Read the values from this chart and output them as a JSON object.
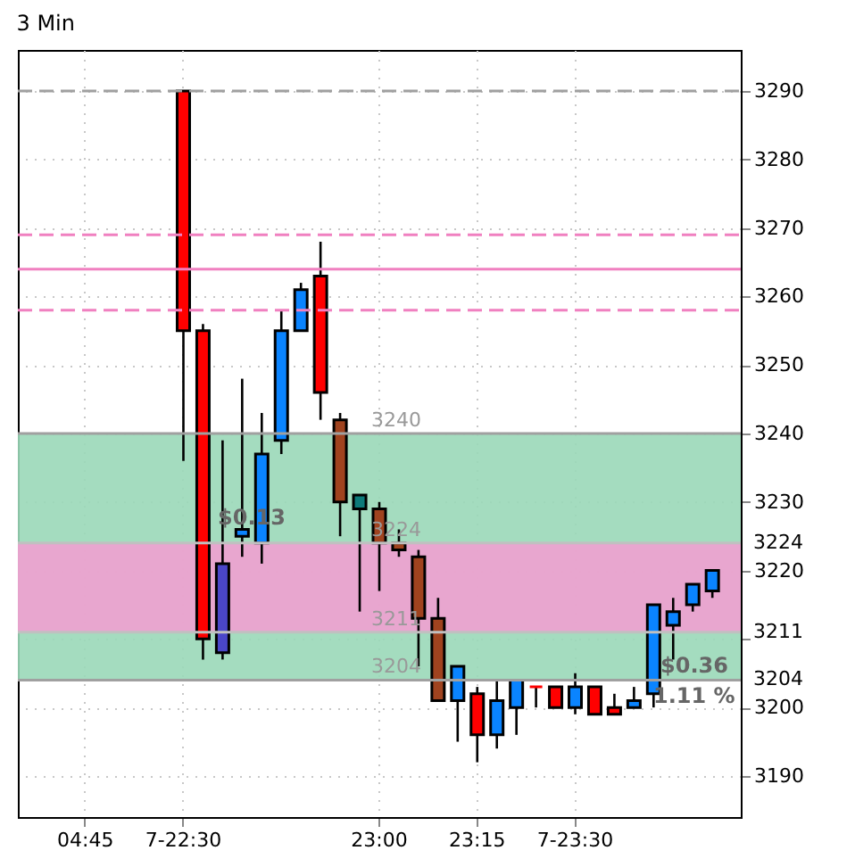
{
  "chart_data": {
    "type": "candlestick",
    "title": "3 Min",
    "categories": [
      null,
      null,
      null,
      "04:45",
      null,
      null,
      null,
      null,
      "7-22:30",
      null,
      null,
      null,
      null,
      null,
      null,
      null,
      null,
      null,
      "23:00",
      null,
      null,
      null,
      null,
      "23:15",
      null,
      null,
      null,
      null,
      "7-23:30",
      null,
      null,
      null,
      null,
      null,
      null,
      null,
      null
    ],
    "ohlc": [
      null,
      null,
      null,
      null,
      null,
      null,
      null,
      null,
      [
        3290,
        3290,
        3236,
        3255
      ],
      [
        3255,
        3256,
        3207,
        3210
      ],
      [
        3208,
        3239,
        3207,
        3221
      ],
      [
        3225,
        3248,
        3222,
        3226
      ],
      [
        3224,
        3243,
        3221,
        3237
      ],
      [
        3239,
        3258,
        3237,
        3255
      ],
      [
        3255,
        3262,
        3255,
        3261
      ],
      [
        3263,
        3268,
        3242,
        3246
      ],
      [
        3242,
        3243,
        3225,
        3230
      ],
      [
        3229,
        3231,
        3214,
        3231
      ],
      [
        3229,
        3230,
        3217,
        3224
      ],
      [
        3224,
        3226,
        3222,
        3223
      ],
      [
        3222,
        3223,
        3206,
        3213
      ],
      [
        3213,
        3216,
        3201,
        3201
      ],
      [
        3201,
        3206,
        3195,
        3206
      ],
      [
        3202,
        3203,
        3192,
        3196
      ],
      [
        3196,
        3204,
        3194,
        3201
      ],
      [
        3200,
        3204,
        3196,
        3204
      ],
      [
        3203,
        3203,
        3200,
        3203
      ],
      [
        3203,
        3203,
        3200,
        3200
      ],
      [
        3200,
        3205,
        3199,
        3203
      ],
      [
        3203,
        3203,
        3199,
        3199
      ],
      [
        3200,
        3202,
        3199,
        3199
      ],
      [
        3200,
        3203,
        3200,
        3201
      ],
      [
        3202,
        3215,
        3200,
        3215
      ],
      [
        3212,
        3216,
        3207,
        3214
      ],
      [
        3215,
        3218,
        3214,
        3218
      ],
      [
        3217,
        3220,
        3216,
        3220
      ],
      null
    ],
    "colors": [
      "#ff0000",
      "#ff0000",
      "#ff0000",
      "#ff0000",
      "#ff0000",
      "#ff0000",
      "#ff0000",
      "#ff0000",
      "#ff0000",
      "#ff0000",
      "#4a46c8",
      "#0a84ff",
      "#0a84ff",
      "#0a84ff",
      "#0a84ff",
      "#ff0000",
      "#a0431f",
      "#0e7a7a",
      "#a0431f",
      "#a0431f",
      "#a0431f",
      "#a0431f",
      "#0a84ff",
      "#ff0000",
      "#0a84ff",
      "#0a84ff",
      "#ff0000",
      "#ff0000",
      "#0a84ff",
      "#ff0000",
      "#ff0000",
      "#0a84ff",
      "#0a84ff",
      "#0a84ff",
      "#0a84ff",
      "#0a84ff",
      "#0a84ff"
    ],
    "ylim": [
      3184,
      3296
    ],
    "yticks": [
      3190,
      3200,
      {
        "value": 3210,
        "label": null
      },
      3220,
      3230,
      3240,
      3250,
      3260,
      3270,
      3280,
      3290
    ],
    "grid": true,
    "ref_lines": [
      {
        "axis": "y",
        "value": 3290,
        "color": "#a0a0a0",
        "line_style": "dashed"
      },
      {
        "axis": "y",
        "value": 3269,
        "color": "#f080c0",
        "line_style": "dashed"
      },
      {
        "axis": "y",
        "value": 3264,
        "color": "#f080c0",
        "line_style": "solid"
      },
      {
        "axis": "y",
        "value": 3258,
        "color": "#f080c0",
        "line_style": "dashed"
      },
      {
        "axis": "y",
        "value": 3240,
        "label": "3240",
        "color": "#a0a0a0",
        "line_style": "solid"
      },
      {
        "axis": "y",
        "value": 3224,
        "label": "3224",
        "color": "#c0c0c0",
        "line_style": "solid"
      },
      {
        "axis": "y",
        "value": 3211,
        "label": "3211",
        "color": "#c0c0c0",
        "line_style": "solid"
      },
      {
        "axis": "y",
        "value": 3204,
        "label": "3204",
        "color": "#a0a0a0",
        "line_style": "solid"
      }
    ],
    "bands": [
      {
        "axis": "y",
        "from": 3204,
        "to": 3240,
        "color": "#9ad8b8"
      },
      {
        "axis": "y",
        "from": 3211,
        "to": 3224,
        "color": "#f0a0d0"
      }
    ],
    "annotations": [
      "$0.13",
      "$0.36",
      "1.11 %"
    ]
  }
}
